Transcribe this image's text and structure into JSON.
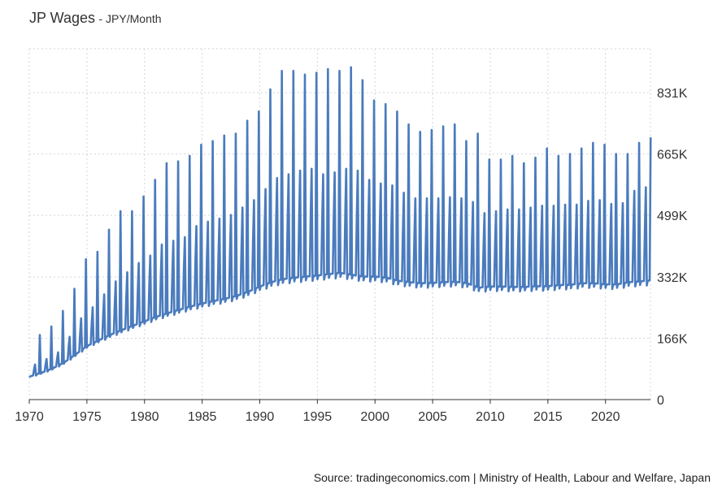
{
  "header": {
    "title": "JP Wages",
    "subtitle": "- JPY/Month"
  },
  "source": "Source: tradingeconomics.com | Ministry of Health, Labour and Welfare, Japan",
  "colors": {
    "line": "#4a7bbd",
    "grid": "#d0d6de",
    "axis": "#333333"
  },
  "chart_data": {
    "type": "line",
    "title": "JP Wages",
    "subtitle": "JPY/Month",
    "xlabel": "",
    "ylabel": "",
    "xlim": [
      1970,
      2023.9
    ],
    "ylim": [
      0,
      950000
    ],
    "yticks": [
      0,
      166000,
      332000,
      499000,
      665000,
      831000
    ],
    "ytick_labels": [
      "0",
      "166K",
      "332K",
      "499K",
      "665K",
      "831K"
    ],
    "xticks": [
      1970,
      1975,
      1980,
      1985,
      1990,
      1995,
      2000,
      2005,
      2010,
      2015,
      2020
    ],
    "xtick_labels": [
      "1970",
      "1975",
      "1980",
      "1985",
      "1990",
      "1995",
      "2000",
      "2005",
      "2010",
      "2015",
      "2020"
    ],
    "grid": true,
    "y_axis_position": "right",
    "frequency": "monthly (Jan 1970 – Dec 2023); December and summer bonus peaks each year",
    "series": [
      {
        "annual": {
          "years": [
            1970,
            1971,
            1972,
            1973,
            1974,
            1975,
            1976,
            1977,
            1978,
            1979,
            1980,
            1981,
            1982,
            1983,
            1984,
            1985,
            1986,
            1987,
            1988,
            1989,
            1990,
            1991,
            1992,
            1993,
            1994,
            1995,
            1996,
            1997,
            1998,
            1999,
            2000,
            2001,
            2002,
            2003,
            2004,
            2005,
            2006,
            2007,
            2008,
            2009,
            2010,
            2011,
            2012,
            2013,
            2014,
            2015,
            2016,
            2017,
            2018,
            2019,
            2020,
            2021,
            2022,
            2023
          ],
          "base": [
            62000,
            72000,
            84000,
            100000,
            122000,
            145000,
            160000,
            175000,
            188000,
            200000,
            212000,
            224000,
            234000,
            243000,
            252000,
            260000,
            267000,
            273000,
            281000,
            292000,
            306000,
            318000,
            326000,
            330000,
            333000,
            336000,
            340000,
            343000,
            338000,
            333000,
            333000,
            330000,
            322000,
            318000,
            315000,
            316000,
            318000,
            319000,
            315000,
            303000,
            306000,
            306000,
            305000,
            305000,
            307000,
            307000,
            310000,
            311000,
            315000,
            315000,
            312000,
            312000,
            318000,
            320000
          ],
          "summer_peak": [
            95000,
            110000,
            128000,
            170000,
            220000,
            250000,
            285000,
            320000,
            345000,
            370000,
            390000,
            420000,
            430000,
            440000,
            470000,
            482000,
            490000,
            500000,
            520000,
            540000,
            570000,
            600000,
            610000,
            620000,
            625000,
            610000,
            615000,
            625000,
            620000,
            595000,
            585000,
            580000,
            560000,
            545000,
            545000,
            545000,
            548000,
            545000,
            535000,
            505000,
            510000,
            515000,
            515000,
            520000,
            525000,
            525000,
            528000,
            528000,
            538000,
            540000,
            530000,
            532000,
            565000,
            575000
          ],
          "december_peak": [
            175000,
            198000,
            240000,
            300000,
            380000,
            400000,
            460000,
            510000,
            510000,
            550000,
            595000,
            640000,
            645000,
            660000,
            690000,
            700000,
            715000,
            720000,
            755000,
            780000,
            840000,
            890000,
            890000,
            880000,
            885000,
            895000,
            890000,
            900000,
            865000,
            810000,
            800000,
            780000,
            745000,
            725000,
            730000,
            740000,
            745000,
            700000,
            720000,
            650000,
            650000,
            660000,
            640000,
            655000,
            680000,
            660000,
            665000,
            680000,
            695000,
            690000,
            665000,
            665000,
            695000,
            710000
          ]
        }
      }
    ]
  }
}
